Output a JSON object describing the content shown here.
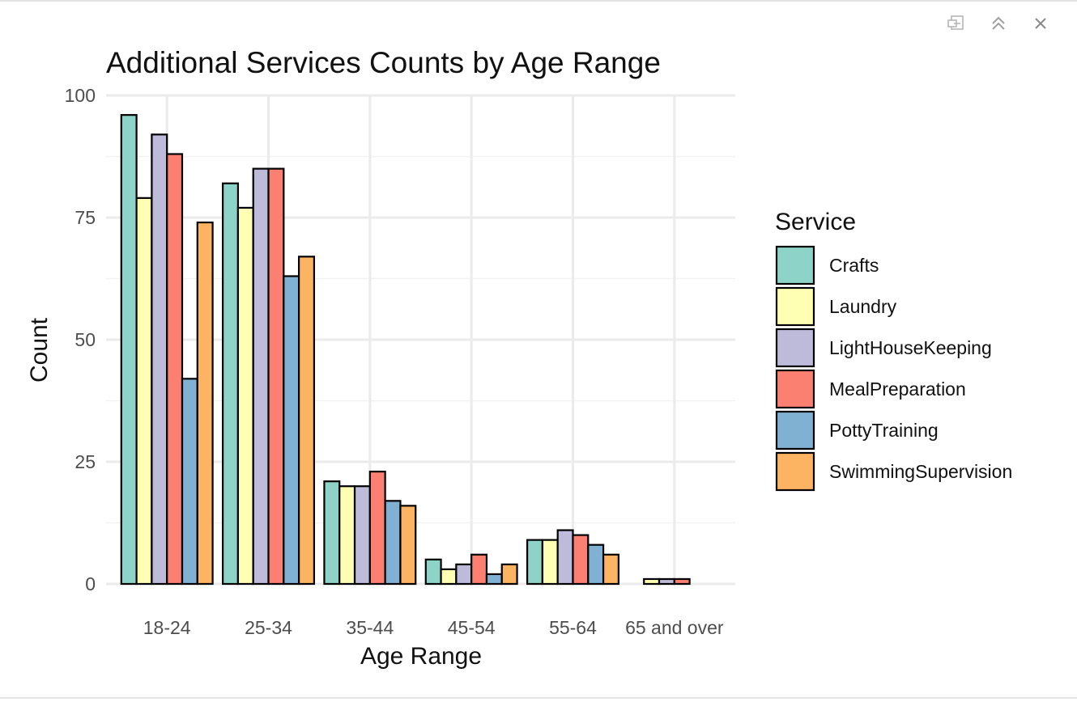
{
  "chart_data": {
    "type": "bar",
    "title": "Additional Services Counts by Age Range",
    "xlabel": "Age Range",
    "ylabel": "Count",
    "ylim": [
      0,
      100
    ],
    "yticks": [
      0,
      25,
      50,
      75,
      100
    ],
    "grid": true,
    "legend_title": "Service",
    "legend_position": "right",
    "categories": [
      "18-24",
      "25-34",
      "35-44",
      "45-54",
      "55-64",
      "65 and over"
    ],
    "series": [
      {
        "name": "Crafts",
        "color": "#8dd3c7",
        "values": [
          96,
          82,
          21,
          5,
          9,
          0
        ]
      },
      {
        "name": "Laundry",
        "color": "#ffffb3",
        "values": [
          79,
          77,
          20,
          3,
          9,
          1
        ]
      },
      {
        "name": "LightHouseKeeping",
        "color": "#bebada",
        "values": [
          92,
          85,
          20,
          4,
          11,
          1
        ]
      },
      {
        "name": "MealPreparation",
        "color": "#fb8072",
        "values": [
          88,
          85,
          23,
          6,
          10,
          1
        ]
      },
      {
        "name": "PottyTraining",
        "color": "#80b1d3",
        "values": [
          42,
          63,
          17,
          2,
          8,
          0
        ]
      },
      {
        "name": "SwimmingSupervision",
        "color": "#fdb462",
        "values": [
          74,
          67,
          16,
          4,
          6,
          0
        ]
      }
    ]
  },
  "toolbar": {
    "icons": [
      "export-icon",
      "collapse-icon",
      "close-icon"
    ]
  }
}
